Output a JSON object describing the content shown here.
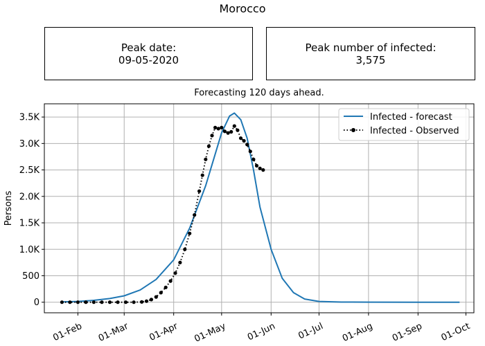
{
  "figure": {
    "suptitle": "Morocco",
    "peak_date_label": "Peak date:",
    "peak_date_value": "09-05-2020",
    "peak_infected_label": "Peak number of infected:",
    "peak_infected_value": "3,575"
  },
  "colors": {
    "forecast": "#1f77b4",
    "observed": "#000000",
    "grid": "#b0b0b0"
  },
  "chart_data": {
    "type": "line",
    "title": "Forecasting 120 days ahead.",
    "ylabel": "Persons",
    "xlabel": "",
    "grid": true,
    "legend_position": "top-right",
    "ylim": [
      -200,
      3750
    ],
    "xlim": [
      "2020-01-11",
      "2020-10-06"
    ],
    "yticks": [
      0,
      500,
      1000,
      1500,
      2000,
      2500,
      3000,
      3500
    ],
    "ytick_labels": [
      "0",
      "500",
      "1.0K",
      "1.5K",
      "2.0K",
      "2.5K",
      "3.0K",
      "3.5K"
    ],
    "xticks": [
      "2020-02-01",
      "2020-03-01",
      "2020-04-01",
      "2020-05-01",
      "2020-06-01",
      "2020-07-01",
      "2020-08-01",
      "2020-09-01",
      "2020-10-01"
    ],
    "xtick_labels": [
      "01-Feb",
      "01-Mar",
      "01-Apr",
      "01-May",
      "01-Jun",
      "01-Jul",
      "01-Aug",
      "01-Sep",
      "01-Oct"
    ],
    "series": [
      {
        "name": "Infected - forecast",
        "style": "solid",
        "points": [
          [
            "2020-01-22",
            5
          ],
          [
            "2020-02-01",
            15
          ],
          [
            "2020-02-11",
            35
          ],
          [
            "2020-02-21",
            70
          ],
          [
            "2020-03-01",
            120
          ],
          [
            "2020-03-11",
            230
          ],
          [
            "2020-03-21",
            430
          ],
          [
            "2020-04-01",
            800
          ],
          [
            "2020-04-11",
            1400
          ],
          [
            "2020-04-21",
            2200
          ],
          [
            "2020-04-26",
            2700
          ],
          [
            "2020-05-01",
            3200
          ],
          [
            "2020-05-06",
            3520
          ],
          [
            "2020-05-09",
            3575
          ],
          [
            "2020-05-13",
            3450
          ],
          [
            "2020-05-17",
            3100
          ],
          [
            "2020-05-21",
            2500
          ],
          [
            "2020-05-25",
            1800
          ],
          [
            "2020-06-01",
            1000
          ],
          [
            "2020-06-08",
            450
          ],
          [
            "2020-06-15",
            180
          ],
          [
            "2020-06-22",
            60
          ],
          [
            "2020-07-01",
            15
          ],
          [
            "2020-07-15",
            3
          ],
          [
            "2020-08-01",
            1
          ],
          [
            "2020-09-01",
            0
          ],
          [
            "2020-09-27",
            0
          ]
        ]
      },
      {
        "name": "Infected - Observed",
        "style": "dotted-markers",
        "points": [
          [
            "2020-01-22",
            0
          ],
          [
            "2020-01-27",
            0
          ],
          [
            "2020-02-01",
            0
          ],
          [
            "2020-02-06",
            0
          ],
          [
            "2020-02-11",
            0
          ],
          [
            "2020-02-16",
            0
          ],
          [
            "2020-02-21",
            0
          ],
          [
            "2020-02-26",
            0
          ],
          [
            "2020-03-02",
            0
          ],
          [
            "2020-03-07",
            0
          ],
          [
            "2020-03-12",
            5
          ],
          [
            "2020-03-15",
            20
          ],
          [
            "2020-03-18",
            50
          ],
          [
            "2020-03-21",
            100
          ],
          [
            "2020-03-24",
            180
          ],
          [
            "2020-03-27",
            280
          ],
          [
            "2020-03-30",
            400
          ],
          [
            "2020-04-02",
            550
          ],
          [
            "2020-04-05",
            750
          ],
          [
            "2020-04-08",
            1000
          ],
          [
            "2020-04-11",
            1300
          ],
          [
            "2020-04-14",
            1650
          ],
          [
            "2020-04-17",
            2100
          ],
          [
            "2020-04-19",
            2400
          ],
          [
            "2020-04-21",
            2700
          ],
          [
            "2020-04-23",
            2950
          ],
          [
            "2020-04-25",
            3150
          ],
          [
            "2020-04-27",
            3300
          ],
          [
            "2020-04-29",
            3280
          ],
          [
            "2020-05-01",
            3300
          ],
          [
            "2020-05-03",
            3230
          ],
          [
            "2020-05-05",
            3200
          ],
          [
            "2020-05-07",
            3220
          ],
          [
            "2020-05-09",
            3330
          ],
          [
            "2020-05-11",
            3250
          ],
          [
            "2020-05-13",
            3100
          ],
          [
            "2020-05-15",
            3050
          ],
          [
            "2020-05-17",
            2980
          ],
          [
            "2020-05-19",
            2850
          ],
          [
            "2020-05-21",
            2700
          ],
          [
            "2020-05-23",
            2580
          ],
          [
            "2020-05-25",
            2530
          ],
          [
            "2020-05-27",
            2500
          ]
        ]
      }
    ]
  }
}
